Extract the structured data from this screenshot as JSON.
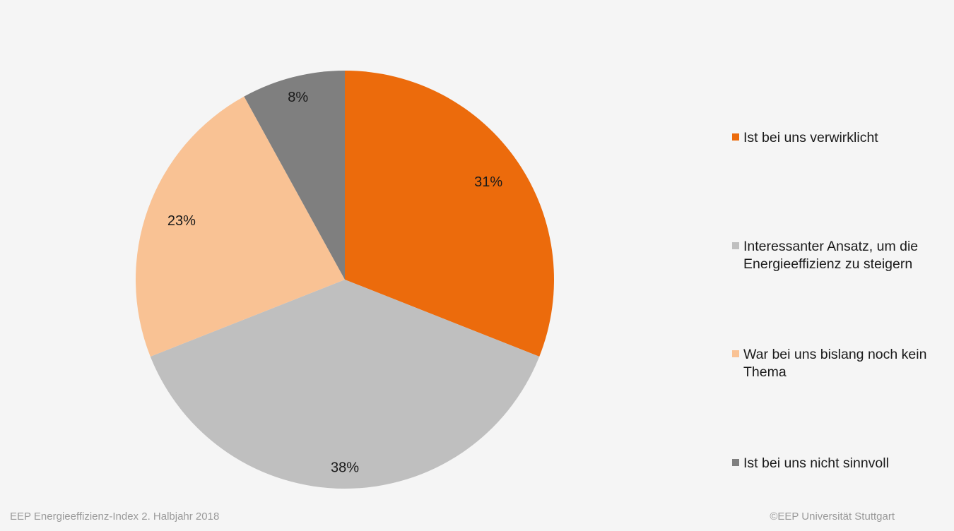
{
  "chart_data": {
    "type": "pie",
    "title": "",
    "categories": [
      "Ist bei uns verwirklicht",
      "Interessanter Ansatz, um die Energieeffizienz zu steigern",
      "War bei uns bislang noch kein Thema",
      "Ist bei uns nicht sinnvoll"
    ],
    "values": [
      31,
      38,
      23,
      8
    ],
    "labels": [
      "31%",
      "38%",
      "23%",
      "8%"
    ],
    "colors": [
      "#ec6b0c",
      "#bfbfbf",
      "#f9c294",
      "#7f7f7f"
    ],
    "legend_position": "right"
  },
  "footer": {
    "source": "EEP Energieeffizienz-Index 2. Halbjahr 2018",
    "copyright": "©EEP Universität Stuttgart"
  }
}
